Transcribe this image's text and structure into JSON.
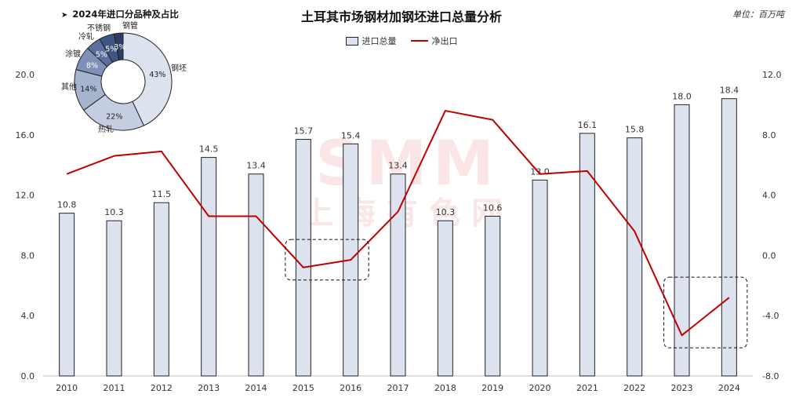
{
  "title": "土耳其市场钢材加钢坯进口总量分析",
  "unit_label": "单位：百万吨",
  "watermark": {
    "line1": "SMM",
    "line2": "上海有色网"
  },
  "chart_data": [
    {
      "type": "bar",
      "categories": [
        "2010",
        "2011",
        "2012",
        "2013",
        "2014",
        "2015",
        "2016",
        "2017",
        "2018",
        "2019",
        "2020",
        "2021",
        "2022",
        "2023",
        "2024"
      ],
      "series": [
        {
          "name": "进口总量",
          "axis": "left",
          "type": "bar",
          "values": [
            10.8,
            10.3,
            11.5,
            14.5,
            13.4,
            15.7,
            15.4,
            13.4,
            10.3,
            10.6,
            13.0,
            16.1,
            15.8,
            18.0,
            18.4
          ],
          "labels": [
            "10.8",
            "10.3",
            "11.5",
            "14.5",
            "13.4",
            "15.7",
            "15.4",
            "13.4",
            "10.3",
            "10.6",
            "13.0",
            "16.1",
            "15.8",
            "18.0",
            "18.4"
          ]
        },
        {
          "name": "净出口",
          "axis": "right",
          "type": "line",
          "values": [
            5.4,
            6.6,
            6.9,
            2.6,
            2.6,
            -0.8,
            -0.3,
            2.9,
            9.6,
            9.0,
            5.4,
            5.6,
            1.6,
            -5.3,
            -2.8
          ]
        }
      ],
      "left_axis": {
        "ylim": [
          0,
          20
        ],
        "ticks": [
          "0.0",
          "4.0",
          "8.0",
          "12.0",
          "16.0",
          "20.0"
        ]
      },
      "right_axis": {
        "ylim": [
          -8,
          12
        ],
        "ticks": [
          "-8.0",
          "-4.0",
          "0.0",
          "4.0",
          "8.0",
          "12.0"
        ]
      },
      "highlights": [
        {
          "from": "2015",
          "to": "2016"
        },
        {
          "from": "2023",
          "to": "2024"
        }
      ],
      "colors": {
        "bar_fill": "#dde3ee",
        "bar_stroke": "#222222",
        "line": "#c00000"
      },
      "legend_position": "top-center"
    },
    {
      "type": "pie",
      "title": "2024年进口分品种及占比",
      "variant": "donut",
      "slices": [
        {
          "label": "钢坯",
          "value": 43,
          "text": "43%",
          "color": "#dce2ee"
        },
        {
          "label": "热轧",
          "value": 22,
          "text": "22%",
          "color": "#c5cee1"
        },
        {
          "label": "其他",
          "value": 14,
          "text": "14%",
          "color": "#a7b4cf"
        },
        {
          "label": "涂镀",
          "value": 8,
          "text": "8%",
          "color": "#7f91b8"
        },
        {
          "label": "冷轧",
          "value": 5,
          "text": "5%",
          "color": "#5a6f9e"
        },
        {
          "label": "不锈钢",
          "value": 5,
          "text": "5%",
          "color": "#3f5584"
        },
        {
          "label": "钢管",
          "value": 3,
          "text": "3%",
          "color": "#2c3e66"
        }
      ]
    }
  ]
}
